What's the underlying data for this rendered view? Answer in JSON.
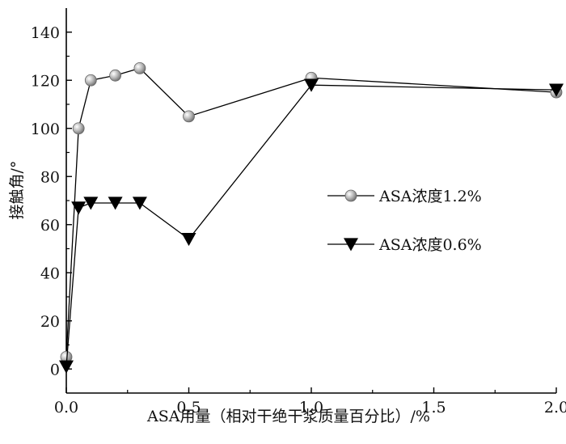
{
  "chart_data": {
    "type": "line",
    "xlabel": "ASA用量（相对干绝干浆质量百分比）/%",
    "ylabel": "接触角/°",
    "xlim": [
      0,
      2.0
    ],
    "ylim": [
      -10,
      150
    ],
    "x_ticks": [
      0.0,
      0.5,
      1.0,
      1.5,
      2.0
    ],
    "x_tick_labels": [
      "0.0",
      "0.5",
      "1.0",
      "1.5",
      "2.0"
    ],
    "y_ticks": [
      0,
      20,
      40,
      60,
      80,
      100,
      120,
      140
    ],
    "y_tick_labels": [
      "0",
      "20",
      "40",
      "60",
      "80",
      "100",
      "120",
      "140"
    ],
    "grid": false,
    "legend_position": "center-right",
    "series": [
      {
        "name": "ASA浓度1.2%",
        "marker": "circle",
        "color": "#9e9e9e",
        "x": [
          0,
          0.05,
          0.1,
          0.2,
          0.3,
          0.5,
          1.0,
          2.0
        ],
        "y": [
          5,
          100,
          120,
          122,
          125,
          105,
          121,
          115
        ]
      },
      {
        "name": "ASA浓度0.6%",
        "marker": "triangle-down",
        "color": "#000000",
        "x": [
          0,
          0.05,
          0.1,
          0.2,
          0.3,
          0.5,
          1.0,
          2.0
        ],
        "y": [
          1,
          67,
          69,
          69,
          69,
          54,
          118,
          116
        ]
      }
    ]
  }
}
